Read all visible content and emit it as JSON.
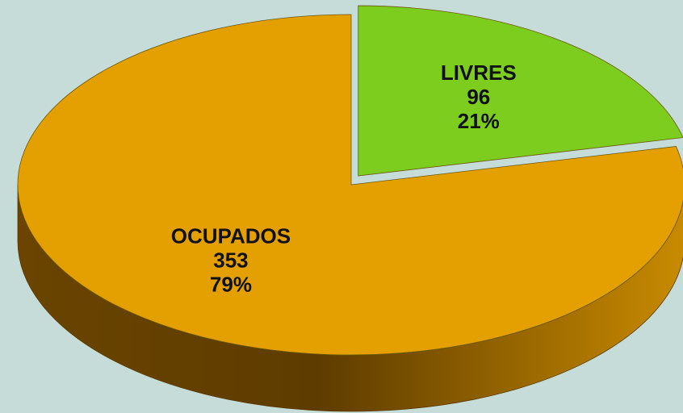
{
  "chart_data": {
    "type": "pie3d",
    "categories": [
      "LIVRES",
      "OCUPADOS"
    ],
    "values": [
      96,
      353
    ],
    "percentages": [
      {
        "value": 21,
        "label": "21%"
      },
      {
        "value": 79,
        "label": "79%"
      }
    ],
    "colors": [
      "#7ccd1e",
      "#e49f00"
    ],
    "exploded": [
      true,
      false
    ]
  }
}
